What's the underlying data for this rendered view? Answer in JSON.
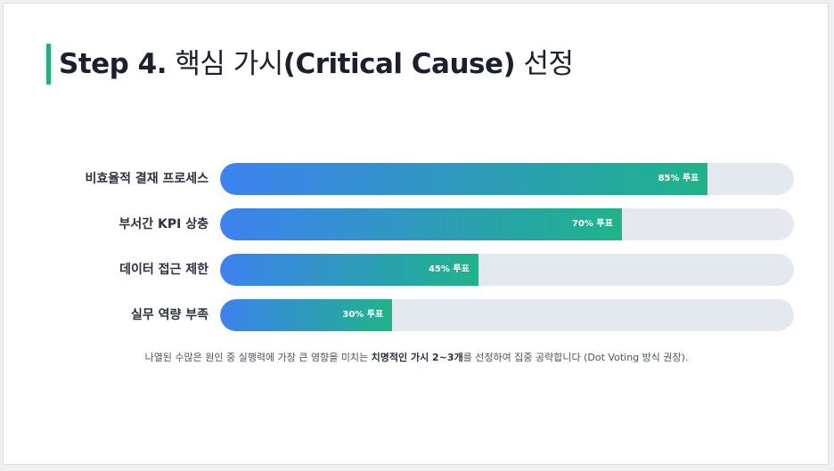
{
  "title": {
    "step": "Step 4.",
    "korean_a": "핵심 가시",
    "english": "(Critical Cause)",
    "korean_b": "선정"
  },
  "accent_color": "#1fb37c",
  "bar_gradient": [
    "#3d82f0",
    "#1fb389"
  ],
  "track_color": "#e4e9f0",
  "causes": [
    {
      "label": "비효율적 결재 프로세스",
      "percent": 85,
      "value_label": "85% 투표"
    },
    {
      "label": "부서간 KPI 상충",
      "percent": 70,
      "value_label": "70% 투표"
    },
    {
      "label": "데이터 접근 제한",
      "percent": 45,
      "value_label": "45% 투표"
    },
    {
      "label": "실무 역량 부족",
      "percent": 30,
      "value_label": "30% 투표"
    }
  ],
  "footnote": {
    "before": "나열된 수많은 원인 중 실행력에 가장 큰 영향을 미치는 ",
    "emphasis": "치명적인 가시 2~3개",
    "after": "를 선정하여 집중 공략합니다 (Dot Voting 방식 권장)."
  }
}
